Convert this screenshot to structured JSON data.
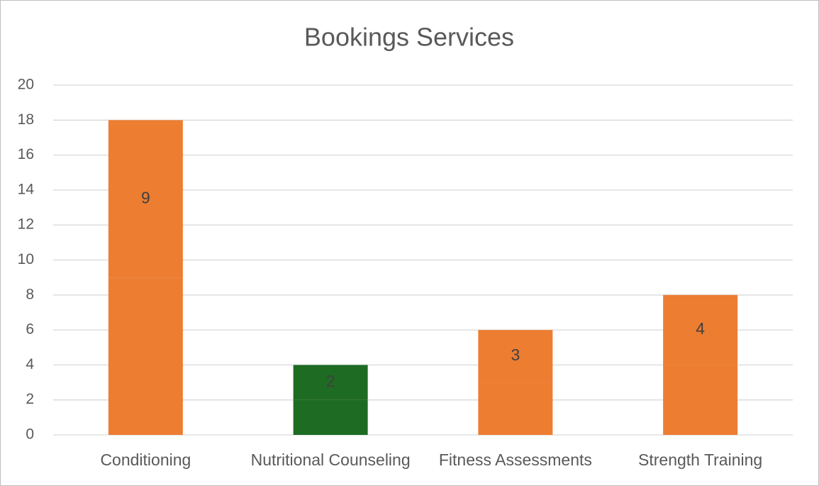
{
  "chart_data": {
    "type": "stacked_bar",
    "title": "Bookings Services",
    "categories": [
      "Conditioning",
      "Nutritional Counseling",
      "Fitness Assessments",
      "Strength Training"
    ],
    "series": [
      {
        "colors": [
          "#ED7D31",
          "#1E6B23",
          "#ED7D31",
          "#ED7D31"
        ],
        "values": [
          9,
          2,
          3,
          4
        ],
        "data_labels": false
      },
      {
        "colors": [
          "#ED7D31",
          "#1E6B23",
          "#ED7D31",
          "#ED7D31"
        ],
        "values": [
          9,
          2,
          3,
          4
        ],
        "data_labels": true
      }
    ],
    "ylim": [
      0,
      20
    ],
    "yticks": [
      0,
      2,
      4,
      6,
      8,
      10,
      12,
      14,
      16,
      18,
      20
    ],
    "grid": true
  }
}
